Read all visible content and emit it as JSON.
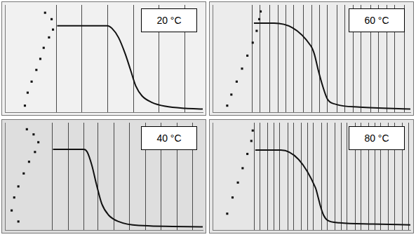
{
  "chart_data": [
    {
      "type": "line",
      "title": "20 °C",
      "xlim": [
        0,
        100
      ],
      "ylim": [
        0,
        100
      ],
      "xticks": [
        26,
        39,
        52,
        65,
        78,
        91
      ],
      "yticks": [],
      "grid": true,
      "tick_labels": false,
      "series": [
        {
          "type": "scatter",
          "marker": "square",
          "color": "#111111",
          "x": [
            20.3,
            23.6,
            24.3,
            22.3,
            19.6,
            17.9,
            15.9,
            13.5,
            11.5,
            10.1
          ],
          "values": [
            92.7,
            86.7,
            77.0,
            69.7,
            60.0,
            49.7,
            39.4,
            28.5,
            18.2,
            6.1
          ]
        },
        {
          "type": "line",
          "marker": "none",
          "line_style": "solid",
          "color": "#111111",
          "x": [
            26.4,
            51.7,
            54.1,
            57.4,
            60.8,
            63.5,
            66.2,
            69.3,
            74.3,
            81.1,
            91.2,
            100
          ],
          "values": [
            80.6,
            80.6,
            78.2,
            69.7,
            54.5,
            39.4,
            24.2,
            15.2,
            9.1,
            5.5,
            3.6,
            3.0
          ]
        }
      ]
    },
    {
      "type": "line",
      "title": "60 °C",
      "xlim": [
        0,
        100
      ],
      "ylim": [
        0,
        100
      ],
      "xticks": [
        20,
        24,
        29,
        33,
        37,
        41,
        46,
        50,
        54,
        58,
        63,
        67,
        71,
        75,
        80,
        84,
        88,
        92,
        97
      ],
      "yticks": [],
      "grid": true,
      "tick_labels": false,
      "series": [
        {
          "type": "scatter",
          "marker": "square",
          "color": "#111111",
          "x": [
            24.3,
            23.6,
            22.3,
            20.3,
            17.6,
            14.9,
            12.2,
            9.5,
            7.4
          ],
          "values": [
            93.9,
            86.7,
            75.8,
            64.8,
            52.7,
            40.6,
            28.5,
            16.4,
            6.1
          ]
        },
        {
          "type": "line",
          "marker": "none",
          "line_style": "solid",
          "color": "#111111",
          "x": [
            20.9,
            31.1,
            49.7,
            51.4,
            53.4,
            55.7,
            58.1,
            62.5,
            74.3,
            100
          ],
          "values": [
            83.0,
            83.0,
            61.8,
            54.5,
            39.4,
            24.2,
            12.1,
            7.3,
            4.8,
            3.0
          ]
        }
      ]
    },
    {
      "type": "line",
      "title": "40 °C",
      "xlim": [
        0,
        100
      ],
      "ylim": [
        0,
        100
      ],
      "xticks": [
        24,
        32,
        40,
        47,
        55,
        63,
        71,
        79,
        87,
        95
      ],
      "yticks": [],
      "grid": true,
      "tick_labels": false,
      "series": [
        {
          "type": "scatter",
          "marker": "square",
          "color": "#111111",
          "x": [
            11.1,
            14.5,
            16.9,
            15.2,
            12.2,
            9.5,
            6.8,
            4.7,
            3.4,
            6.8
          ],
          "values": [
            93.9,
            89.1,
            81.8,
            72.7,
            63.6,
            52.7,
            40.6,
            30.3,
            18.2,
            7.9
          ]
        },
        {
          "type": "line",
          "marker": "none",
          "line_style": "solid",
          "color": "#111111",
          "x": [
            24.3,
            39.9,
            41.6,
            43.9,
            46.3,
            49.0,
            52.4,
            57.4,
            67.6,
            100
          ],
          "values": [
            75.2,
            75.2,
            72.7,
            60.6,
            42.4,
            24.2,
            13.9,
            7.9,
            4.2,
            3.0
          ]
        }
      ]
    },
    {
      "type": "line",
      "title": "80 °C",
      "xlim": [
        0,
        100
      ],
      "ylim": [
        0,
        100
      ],
      "xticks": [
        21,
        24,
        28,
        31,
        34,
        38,
        41,
        45,
        48,
        51,
        55,
        58,
        62,
        65,
        68,
        72,
        75,
        79,
        82,
        85,
        89,
        92,
        96,
        99
      ],
      "yticks": [],
      "grid": true,
      "tick_labels": false,
      "series": [
        {
          "type": "scatter",
          "marker": "square",
          "color": "#111111",
          "x": [
            20.3,
            19.6,
            17.6,
            15.2,
            12.8,
            10.1,
            7.4
          ],
          "values": [
            92.7,
            83.0,
            70.9,
            57.6,
            44.2,
            30.3,
            15.2
          ]
        },
        {
          "type": "line",
          "marker": "none",
          "line_style": "solid",
          "color": "#111111",
          "x": [
            21.6,
            34.5,
            52.0,
            53.4,
            54.7,
            56.1,
            58.1,
            64.2,
            81.1,
            100
          ],
          "values": [
            74.5,
            74.5,
            39.4,
            30.3,
            21.2,
            13.9,
            9.1,
            6.7,
            5.5,
            4.8
          ]
        }
      ]
    }
  ]
}
